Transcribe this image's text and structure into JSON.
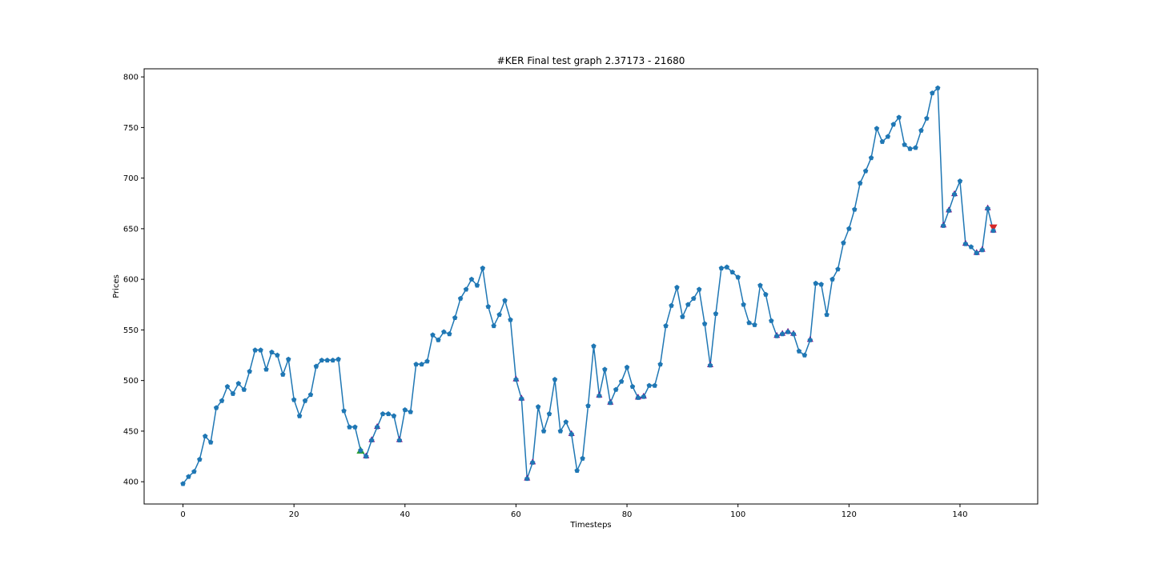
{
  "chart_data": {
    "type": "line",
    "title": "#KER Final test graph 2.37173 - 21680",
    "xlabel": "Timesteps",
    "ylabel": "Prices",
    "xlim": [
      -7,
      154
    ],
    "ylim": [
      378,
      808
    ],
    "xticks": [
      0,
      20,
      40,
      60,
      80,
      100,
      120,
      140
    ],
    "yticks": [
      400,
      450,
      500,
      550,
      600,
      650,
      700,
      750,
      800
    ],
    "grid": false,
    "line_color": "#1f77b4",
    "series": [
      {
        "values": [
          398,
          405,
          410,
          422,
          445,
          439,
          473,
          480,
          494,
          487,
          497,
          491,
          509,
          530,
          530,
          511,
          528,
          525,
          506,
          521,
          481,
          465,
          480,
          486,
          514,
          520,
          520,
          520,
          521,
          470,
          454,
          454,
          431,
          425,
          441,
          454,
          467,
          467,
          465,
          441,
          471,
          469,
          516,
          516,
          519,
          545,
          540,
          548,
          546,
          562,
          581,
          590,
          600,
          594,
          611,
          573,
          554,
          565,
          579,
          560,
          501,
          482,
          403,
          419,
          474,
          450,
          467,
          501,
          450,
          459,
          447,
          411,
          423,
          475,
          534,
          485,
          511,
          478,
          491,
          499,
          513,
          494,
          483,
          484,
          495,
          495,
          516,
          554,
          574,
          592,
          563,
          575,
          581,
          590,
          556,
          515,
          566,
          611,
          612,
          607,
          602,
          575,
          557,
          555,
          594,
          585,
          559,
          544,
          546,
          548,
          546,
          529,
          525,
          540,
          596,
          595,
          565,
          600,
          610,
          636,
          650,
          669,
          695,
          707,
          720,
          749,
          736,
          741,
          753,
          760,
          733,
          729,
          730,
          747,
          759,
          784,
          789,
          653,
          668,
          684,
          697,
          635,
          632,
          626,
          629,
          670,
          648
        ]
      }
    ],
    "markers": {
      "buy_up": {
        "color": "#2ca02c",
        "points": [
          [
            32,
            431
          ]
        ]
      },
      "purple_up": {
        "color": "#800080",
        "points": [
          [
            33,
            425
          ],
          [
            34,
            441
          ],
          [
            35,
            454
          ],
          [
            39,
            441
          ],
          [
            60,
            501
          ],
          [
            61,
            482
          ],
          [
            62,
            403
          ],
          [
            63,
            419
          ],
          [
            70,
            447
          ],
          [
            75,
            485
          ],
          [
            77,
            478
          ],
          [
            82,
            483
          ],
          [
            83,
            484
          ],
          [
            95,
            515
          ],
          [
            107,
            544
          ],
          [
            108,
            546
          ],
          [
            109,
            548
          ],
          [
            110,
            546
          ],
          [
            113,
            540
          ],
          [
            137,
            653
          ],
          [
            138,
            668
          ],
          [
            139,
            684
          ],
          [
            141,
            635
          ],
          [
            143,
            626
          ],
          [
            144,
            629
          ],
          [
            145,
            670
          ],
          [
            146,
            648
          ]
        ]
      },
      "sell_down": {
        "color": "#d62728",
        "points": [
          [
            146,
            651
          ]
        ]
      }
    }
  }
}
